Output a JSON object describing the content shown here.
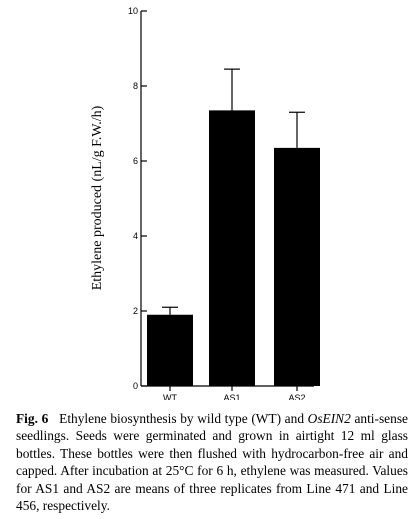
{
  "chart_data": {
    "type": "bar",
    "categories": [
      "WT",
      "AS1",
      "AS2"
    ],
    "values": [
      1.9,
      7.35,
      6.35
    ],
    "errors": [
      0.2,
      1.1,
      0.95
    ],
    "ylabel": "Ethylene produced (nL/g F.W./h)",
    "ylim": [
      0,
      10
    ],
    "yticks": [
      0,
      2,
      4,
      6,
      8,
      10
    ],
    "grid": false,
    "bar_color": "#000000"
  },
  "caption": {
    "label": "Fig. 6",
    "text_before": "Ethylene biosynthesis by wild type (WT) and ",
    "gene": "OsEIN2",
    "text_after": " anti-sense seedlings. Seeds were germinated and grown in airtight 12 ml glass bottles. These bottles were then flushed with hydrocarbon-free air and capped. After incubation at 25°C for 6 h, ethylene was measured. Values for AS1 and AS2 are means of three replicates from Line 471 and Line 456, respectively."
  }
}
